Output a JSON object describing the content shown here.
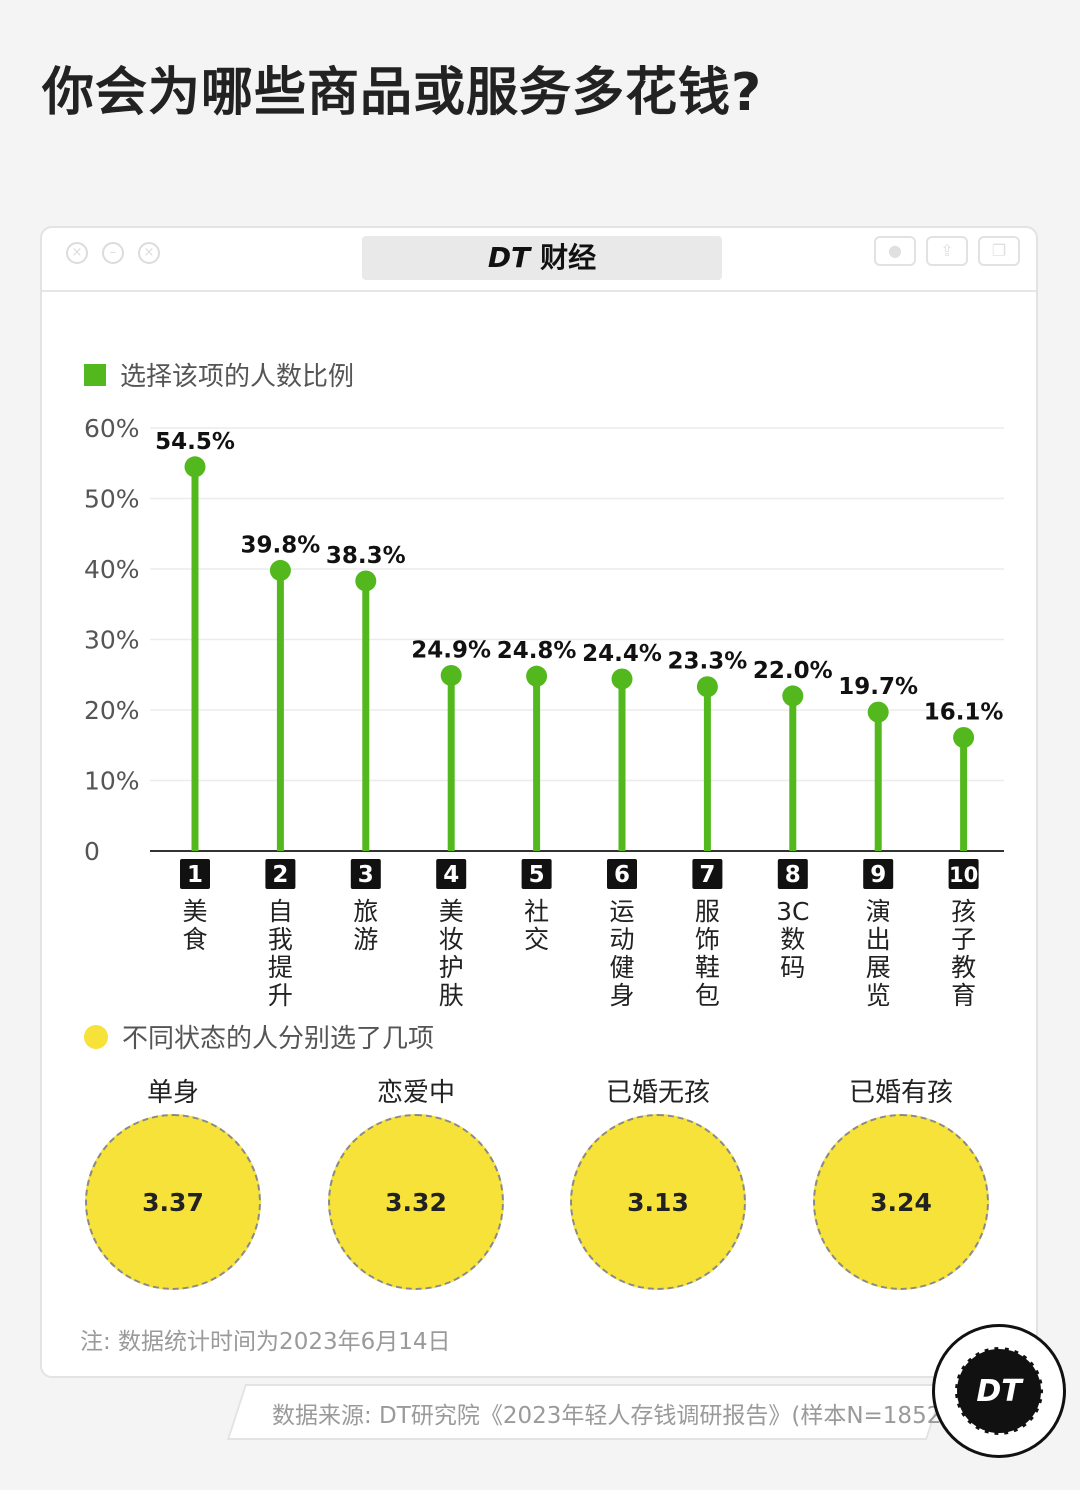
{
  "title": "你会为哪些商品或服务多花钱?",
  "window": {
    "brand_logo": "DT",
    "brand_text": "财经",
    "controls": [
      "close-icon",
      "minimize-icon",
      "maximize-icon"
    ],
    "tools": [
      "record-icon",
      "share-icon",
      "copy-icon"
    ]
  },
  "legend1": "选择该项的人数比例",
  "legend2": "不同状态的人分别选了几项",
  "chart_data": [
    {
      "type": "bar",
      "legend": "选择该项的人数比例",
      "ylim": [
        0,
        60
      ],
      "yticks": [
        "0",
        "10%",
        "20%",
        "30%",
        "40%",
        "50%",
        "60%"
      ],
      "grid": true,
      "categories": [
        "美食",
        "自我提升",
        "旅游",
        "美妆护肤",
        "社交",
        "运动健身",
        "服饰鞋包",
        "3C 数码",
        "演出展览",
        "孩子教育"
      ],
      "ranks": [
        "1",
        "2",
        "3",
        "4",
        "5",
        "6",
        "7",
        "8",
        "9",
        "10"
      ],
      "values": [
        54.5,
        39.8,
        38.3,
        24.9,
        24.8,
        24.4,
        23.3,
        22.0,
        19.7,
        16.1
      ],
      "value_labels": [
        "54.5%",
        "39.8%",
        "38.3%",
        "24.9%",
        "24.8%",
        "24.4%",
        "23.3%",
        "22.0%",
        "19.7%",
        "16.1%"
      ],
      "colors": {
        "bar": "#52b81e"
      }
    },
    {
      "type": "bubble",
      "legend": "不同状态的人分别选了几项",
      "categories": [
        "单身",
        "恋爱中",
        "已婚无孩",
        "已婚有孩"
      ],
      "values": [
        3.37,
        3.32,
        3.13,
        3.24
      ],
      "value_labels": [
        "3.37",
        "3.32",
        "3.13",
        "3.24"
      ],
      "colors": {
        "bubble": "#f7e23a"
      }
    }
  ],
  "groups": [
    {
      "label": "单身",
      "value": "3.37"
    },
    {
      "label": "恋爱中",
      "value": "3.32"
    },
    {
      "label": "已婚无孩",
      "value": "3.13"
    },
    {
      "label": "已婚有孩",
      "value": "3.24"
    }
  ],
  "note": "注: 数据统计时间为2023年6月14日",
  "source": "数据来源: DT研究院《2023年轻人存钱调研报告》(样本N=1852)",
  "logo_text": "DT"
}
